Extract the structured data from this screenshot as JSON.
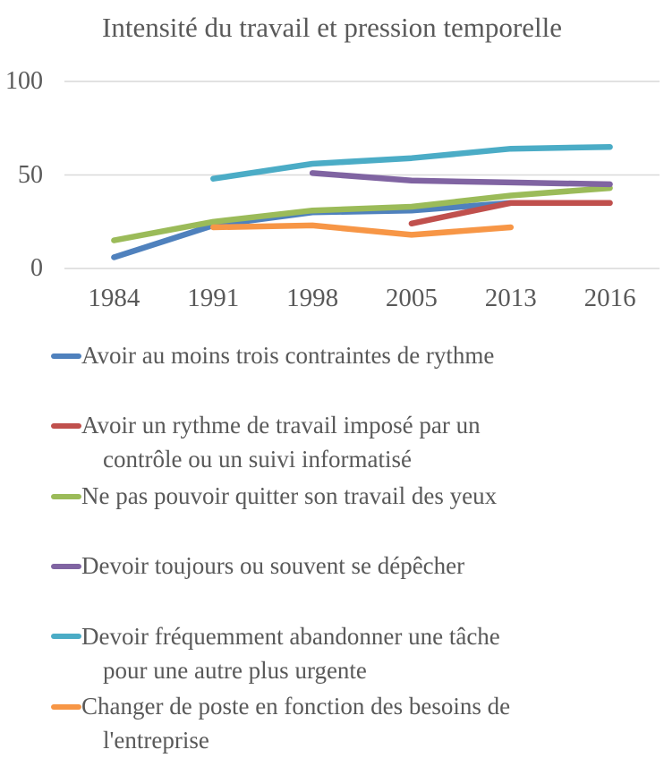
{
  "colors": {
    "gridline": "#D9D9D9",
    "text": "#595959",
    "background": "#FFFFFF"
  },
  "chart_data": {
    "type": "line",
    "title": "Intensité du travail et pression temporelle",
    "categories": [
      "1984",
      "1991",
      "1998",
      "2005",
      "2013",
      "2016"
    ],
    "xlabel": "",
    "ylabel": "",
    "ylim": [
      0,
      100
    ],
    "y_ticks": [
      100,
      50,
      0
    ],
    "grid": "horizontal",
    "legend_position": "bottom",
    "series": [
      {
        "name": "Avoir au moins trois contraintes de rythme",
        "legend_lines": [
          "Avoir au moins trois contraintes de rythme"
        ],
        "color": "#4F81BD",
        "values": [
          6,
          23,
          30,
          31,
          35,
          null
        ]
      },
      {
        "name": "Avoir un rythme de travail imposé par un contrôle ou  un suivi informatisé",
        "legend_lines": [
          "Avoir un rythme de travail imposé par un",
          "contrôle ou  un suivi informatisé"
        ],
        "color": "#C0504D",
        "values": [
          null,
          null,
          null,
          24,
          35,
          35
        ]
      },
      {
        "name": "Ne pas pouvoir quitter son travail des yeux",
        "legend_lines": [
          "Ne pas pouvoir quitter son travail des yeux"
        ],
        "color": "#9BBB59",
        "values": [
          15,
          25,
          31,
          33,
          39,
          43
        ]
      },
      {
        "name": "Devoir toujours ou souvent se dépêcher",
        "legend_lines": [
          "Devoir toujours ou souvent se dépêcher"
        ],
        "color": "#8064A2",
        "values": [
          null,
          null,
          51,
          47,
          46,
          45
        ]
      },
      {
        "name": "Devoir fréquemment abandonner une tâche pour une autre plus urgente",
        "legend_lines": [
          "Devoir fréquemment abandonner une tâche",
          "pour une autre plus urgente"
        ],
        "color": "#4BACC6",
        "values": [
          null,
          48,
          56,
          59,
          64,
          65
        ]
      },
      {
        "name": "Changer de poste en fonction des besoins de l'entreprise",
        "legend_lines": [
          "Changer de poste en fonction des besoins de",
          "l'entreprise"
        ],
        "color": "#F79646",
        "values": [
          null,
          22,
          23,
          18,
          22,
          null
        ]
      }
    ]
  }
}
